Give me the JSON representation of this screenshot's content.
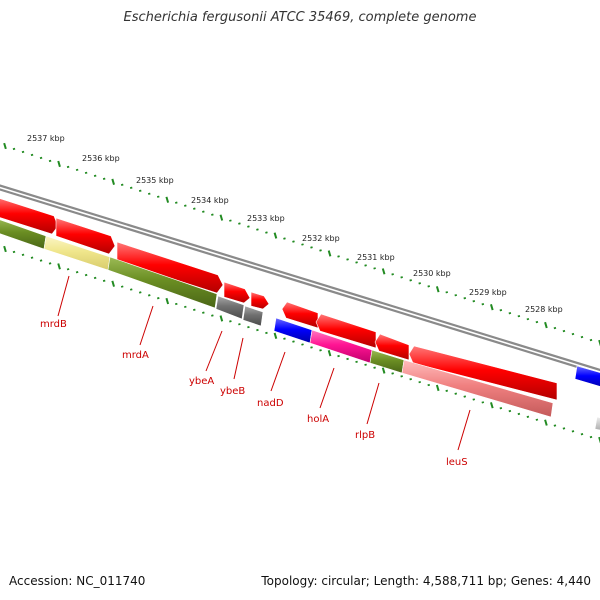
{
  "title": "Escherichia fergusonii ATCC 35469, complete genome",
  "footer": {
    "accession": "Accession: NC_011740",
    "summary": "Topology: circular; Length: 4,588,711 bp; Genes: 4,440"
  },
  "colors": {
    "backbone": "#8a8a8a",
    "cds": "#ff0000",
    "rrna_like": "#0000ff",
    "green_category": "#6b8e23",
    "yellow_category": "#f0e68c",
    "gray_category": "#707070",
    "pink_category": "#ff1493",
    "salmon_category": "#f08080",
    "scale_ticks": "#228b22",
    "gene_labels": "#cc0000"
  },
  "scale_labels": [
    "2537 kbp",
    "2536 kbp",
    "2535 kbp",
    "2534 kbp",
    "2533 kbp",
    "2532 kbp",
    "2531 kbp",
    "2530 kbp",
    "2529 kbp",
    "2528 kbp"
  ],
  "gene_labels": [
    "mrdB",
    "mrdA",
    "ybeA",
    "ybeB",
    "nadD",
    "holA",
    "rlpB",
    "leuS"
  ]
}
